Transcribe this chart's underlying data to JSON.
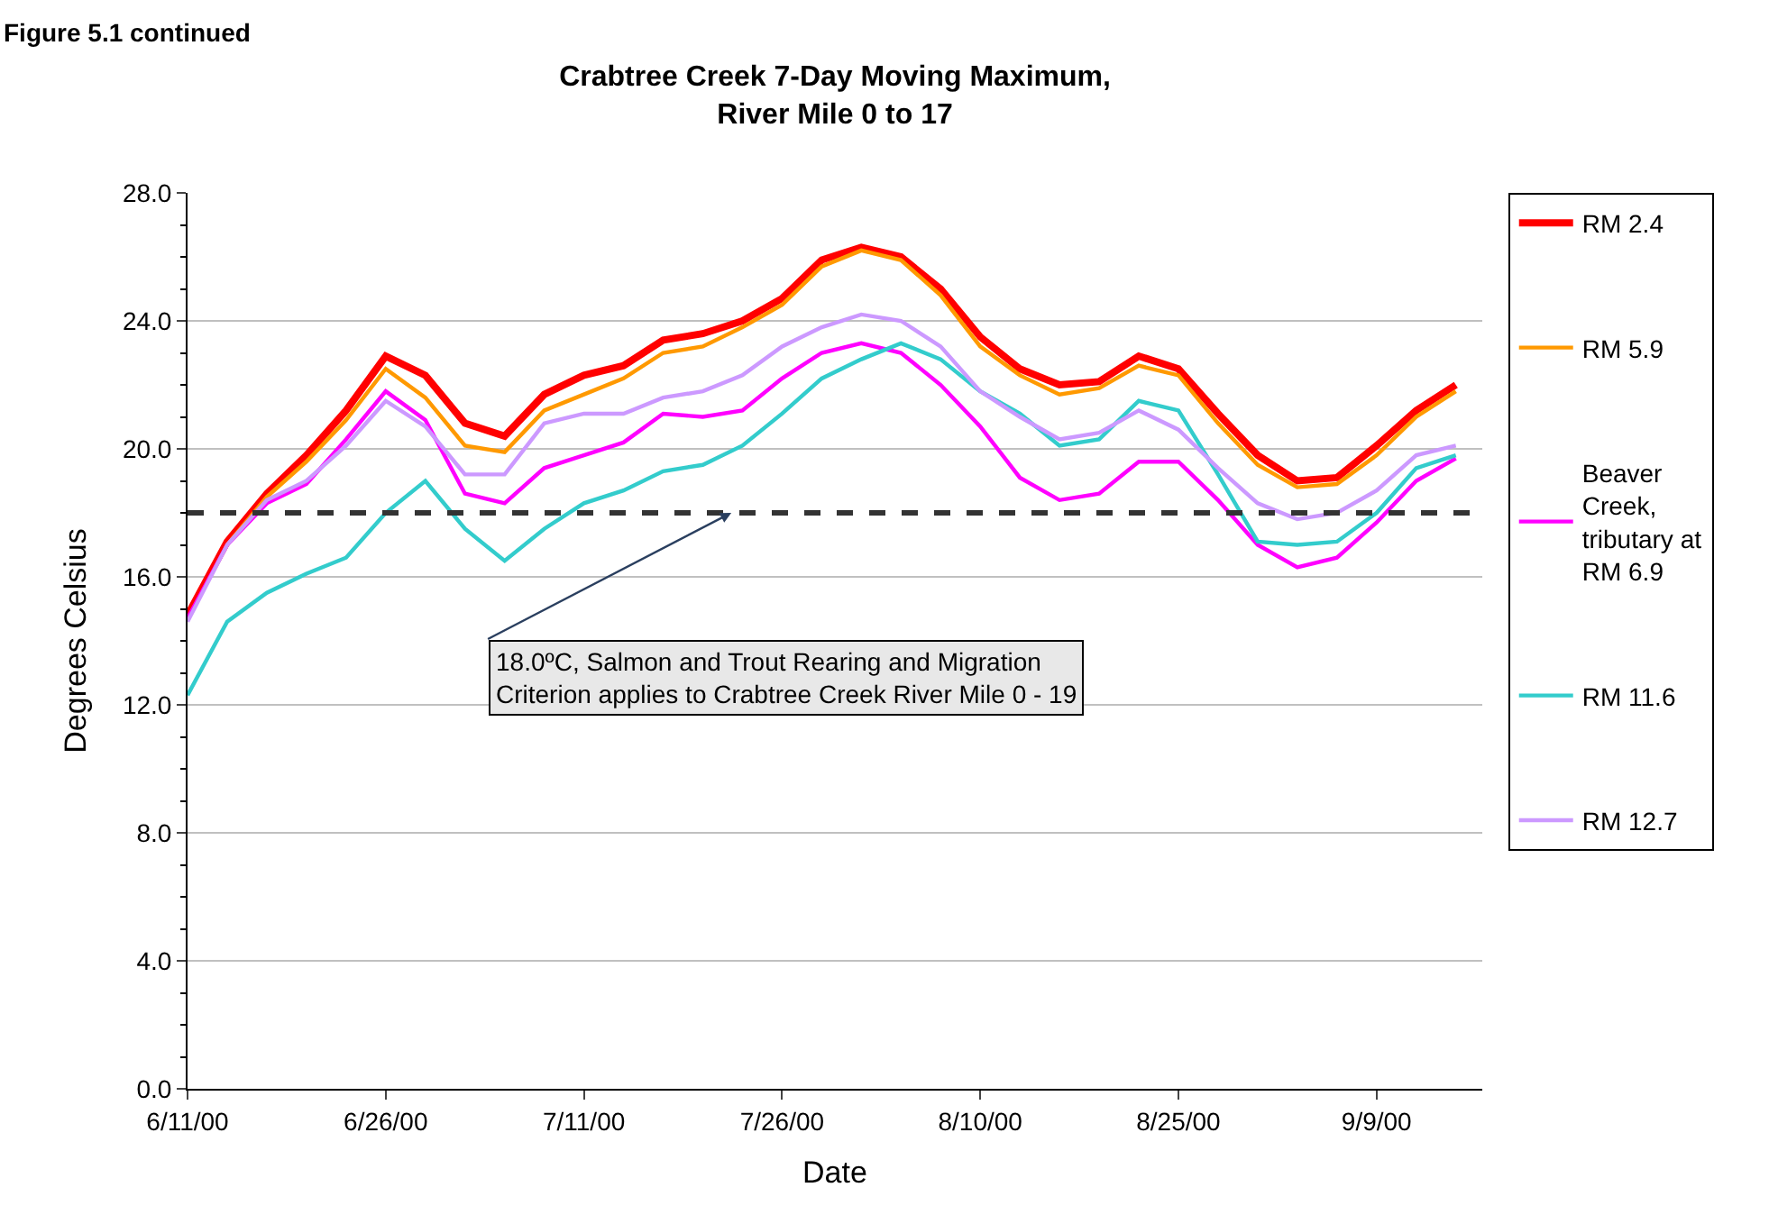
{
  "chart_data": {
    "type": "line",
    "title": "Crabtree Creek 7-Day Moving Maximum,\nRiver Mile 0 to 17",
    "xlabel": "Date",
    "ylabel": "Degrees Celsius",
    "annotations": [
      "Figure 5.1 continued"
    ],
    "x": [
      "2000-06-11",
      "2000-06-14",
      "2000-06-17",
      "2000-06-20",
      "2000-06-23",
      "2000-06-26",
      "2000-06-29",
      "2000-07-02",
      "2000-07-05",
      "2000-07-08",
      "2000-07-11",
      "2000-07-14",
      "2000-07-17",
      "2000-07-20",
      "2000-07-23",
      "2000-07-26",
      "2000-07-29",
      "2000-08-01",
      "2000-08-04",
      "2000-08-07",
      "2000-08-10",
      "2000-08-13",
      "2000-08-16",
      "2000-08-19",
      "2000-08-22",
      "2000-08-25",
      "2000-08-28",
      "2000-08-31",
      "2000-09-03",
      "2000-09-06",
      "2000-09-09",
      "2000-09-12",
      "2000-09-15"
    ],
    "series": [
      {
        "name": "RM 2.4",
        "color": "#ff0000",
        "values": [
          14.8,
          17.1,
          18.6,
          19.8,
          21.2,
          22.9,
          22.3,
          20.8,
          20.4,
          21.7,
          22.3,
          22.6,
          23.4,
          23.6,
          24.0,
          24.7,
          25.9,
          26.3,
          26.0,
          25.0,
          23.5,
          22.5,
          22.0,
          22.1,
          22.9,
          22.5,
          21.1,
          19.8,
          19.0,
          19.1,
          20.1,
          21.2,
          22.0
        ]
      },
      {
        "name": "RM 5.9",
        "color": "#ff9900",
        "values": [
          null,
          17.0,
          18.5,
          19.6,
          20.9,
          22.5,
          21.6,
          20.1,
          19.9,
          21.2,
          21.7,
          22.2,
          23.0,
          23.2,
          23.8,
          24.5,
          25.7,
          26.2,
          25.9,
          24.8,
          23.2,
          22.3,
          21.7,
          21.9,
          22.6,
          22.3,
          20.8,
          19.5,
          18.8,
          18.9,
          19.8,
          21.0,
          21.8
        ]
      },
      {
        "name": "Beaver Creek, tributary at RM 6.9",
        "color": "#ff00ff",
        "values": [
          14.7,
          17.0,
          18.3,
          18.9,
          20.3,
          21.8,
          20.9,
          18.6,
          18.3,
          19.4,
          19.8,
          20.2,
          21.1,
          21.0,
          21.2,
          22.2,
          23.0,
          23.3,
          23.0,
          22.0,
          20.7,
          19.1,
          18.4,
          18.6,
          19.6,
          19.6,
          18.4,
          17.0,
          16.3,
          16.6,
          17.7,
          19.0,
          19.7
        ]
      },
      {
        "name": "RM 11.6",
        "color": "#33cccc",
        "values": [
          12.3,
          14.6,
          15.5,
          16.1,
          16.6,
          18.0,
          19.0,
          17.5,
          16.5,
          17.5,
          18.3,
          18.7,
          19.3,
          19.5,
          20.1,
          21.1,
          22.2,
          22.8,
          23.3,
          22.8,
          21.8,
          21.1,
          20.1,
          20.3,
          21.5,
          21.2,
          19.2,
          17.1,
          17.0,
          17.1,
          18.0,
          19.4,
          19.8
        ]
      },
      {
        "name": "RM 12.7",
        "color": "#cc99ff",
        "values": [
          14.6,
          17.0,
          18.4,
          19.0,
          20.1,
          21.5,
          20.7,
          19.2,
          19.2,
          20.8,
          21.1,
          21.1,
          21.6,
          21.8,
          22.3,
          23.2,
          23.8,
          24.2,
          24.0,
          23.2,
          21.8,
          21.0,
          20.3,
          20.5,
          21.2,
          20.6,
          19.4,
          18.3,
          17.8,
          18.0,
          18.7,
          19.8,
          20.1
        ]
      }
    ],
    "xlim": [
      "2000-06-11",
      "2000-09-17"
    ],
    "xticks": [
      {
        "value": "2000-06-11",
        "label": "6/11/00"
      },
      {
        "value": "2000-06-26",
        "label": "6/26/00"
      },
      {
        "value": "2000-07-11",
        "label": "7/11/00"
      },
      {
        "value": "2000-07-26",
        "label": "7/26/00"
      },
      {
        "value": "2000-08-10",
        "label": "8/10/00"
      },
      {
        "value": "2000-08-25",
        "label": "8/25/00"
      },
      {
        "value": "2000-09-09",
        "label": "9/9/00"
      }
    ],
    "ylim": [
      0,
      28
    ],
    "yticks": [
      {
        "value": 0,
        "label": "0.0"
      },
      {
        "value": 4,
        "label": "4.0"
      },
      {
        "value": 8,
        "label": "8.0"
      },
      {
        "value": 12,
        "label": "12.0"
      },
      {
        "value": 16,
        "label": "16.0"
      },
      {
        "value": 20,
        "label": "20.0"
      },
      {
        "value": 24,
        "label": "24.0"
      },
      {
        "value": 28,
        "label": "28.0"
      }
    ],
    "ref_lines": [
      {
        "axis": "y",
        "value": 18,
        "color": "#333333",
        "line_style": "dashed",
        "label": "18.0ºC, Salmon and Trout Rearing and Migration\nCriterion applies to Crabtree Creek River Mile 0 - 19"
      }
    ],
    "grid": "y",
    "legend": "right",
    "marker": "none",
    "line_style": "solid"
  }
}
